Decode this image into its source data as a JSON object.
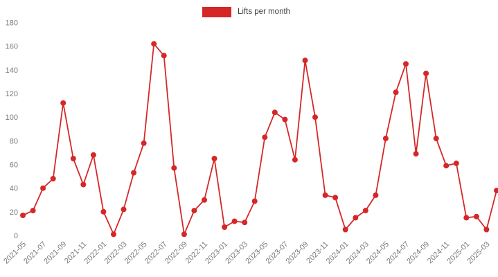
{
  "legend": {
    "label": "Lifts per month",
    "swatch_color": "#d62728"
  },
  "axis_style": {
    "tick_label_color": "#7a7a7a",
    "tick_font_size": 11
  },
  "chart_data": {
    "type": "line",
    "title": "",
    "xlabel": "",
    "ylabel": "",
    "legend_position": "top-center",
    "grid": false,
    "marker": "circle",
    "line_color": "#d62728",
    "ylim": [
      0,
      180
    ],
    "y_ticks": [
      0,
      20,
      40,
      60,
      80,
      100,
      120,
      140,
      160,
      180
    ],
    "x_tick_every": 2,
    "x_tick_labels": [
      "2021-05",
      "2021-07",
      "2021-09",
      "2021-11",
      "2022-01",
      "2022-03",
      "2022-05",
      "2022-07",
      "2022-09",
      "2022-11",
      "2023-01",
      "2023-03",
      "2023-05",
      "2023-07",
      "2023-09",
      "2023-11",
      "2024-01",
      "2024-03",
      "2024-05",
      "2024-07",
      "2024-09",
      "2024-11",
      "2025-01",
      "2025-03"
    ],
    "x": [
      "2021-05",
      "2021-06",
      "2021-07",
      "2021-08",
      "2021-09",
      "2021-10",
      "2021-11",
      "2021-12",
      "2022-01",
      "2022-02",
      "2022-03",
      "2022-04",
      "2022-05",
      "2022-06",
      "2022-07",
      "2022-08",
      "2022-09",
      "2022-10",
      "2022-11",
      "2022-12",
      "2023-01",
      "2023-02",
      "2023-03",
      "2023-04",
      "2023-05",
      "2023-06",
      "2023-07",
      "2023-08",
      "2023-09",
      "2023-10",
      "2023-11",
      "2023-12",
      "2024-01",
      "2024-02",
      "2024-03",
      "2024-04",
      "2024-05",
      "2024-06",
      "2024-07",
      "2024-08",
      "2024-09",
      "2024-10",
      "2024-11",
      "2024-12",
      "2025-01",
      "2025-02",
      "2025-03",
      "2025-04"
    ],
    "series": [
      {
        "name": "Lifts per month",
        "color": "#d62728",
        "values": [
          17,
          21,
          40,
          48,
          112,
          65,
          43,
          68,
          20,
          1,
          22,
          53,
          78,
          162,
          152,
          57,
          1,
          21,
          30,
          65,
          7,
          12,
          11,
          29,
          83,
          104,
          98,
          64,
          148,
          100,
          34,
          32,
          5,
          15,
          21,
          34,
          82,
          121,
          145,
          69,
          137,
          82,
          59,
          61,
          15,
          16,
          5,
          38
        ]
      }
    ]
  }
}
